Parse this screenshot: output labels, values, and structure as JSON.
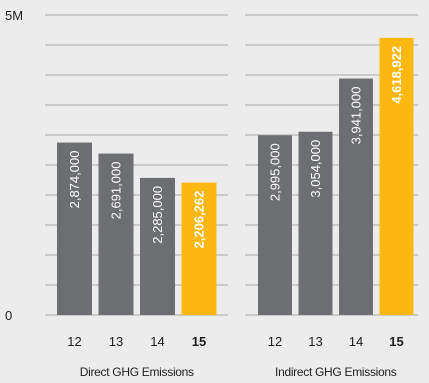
{
  "chart_data": {
    "type": "bar",
    "ylim": [
      0,
      5000000
    ],
    "yticks": [
      {
        "value": 5000000,
        "label": "5M"
      },
      {
        "value": 0,
        "label": "0"
      }
    ],
    "groups": [
      {
        "name": "Direct GHG Emissions",
        "categories": [
          "12",
          "13",
          "14",
          "15"
        ],
        "values": [
          2874000,
          2691000,
          2285000,
          2206262
        ],
        "labels": [
          "2,874,000",
          "2,691,000",
          "2,285,000",
          "2,206,262"
        ]
      },
      {
        "name": "Indirect GHG Emissions",
        "categories": [
          "12",
          "13",
          "14",
          "15"
        ],
        "values": [
          2995000,
          3054000,
          3941000,
          4618922
        ],
        "labels": [
          "2,995,000",
          "3,054,000",
          "3,941,000",
          "4,618,922"
        ]
      }
    ],
    "highlight_category": "15",
    "colors": {
      "bar": "#6d6e71",
      "highlight": "#fcb711",
      "grid": "#a9a9a9",
      "bar_text": "#ffffff",
      "background": "#ececec"
    },
    "grid": true
  }
}
